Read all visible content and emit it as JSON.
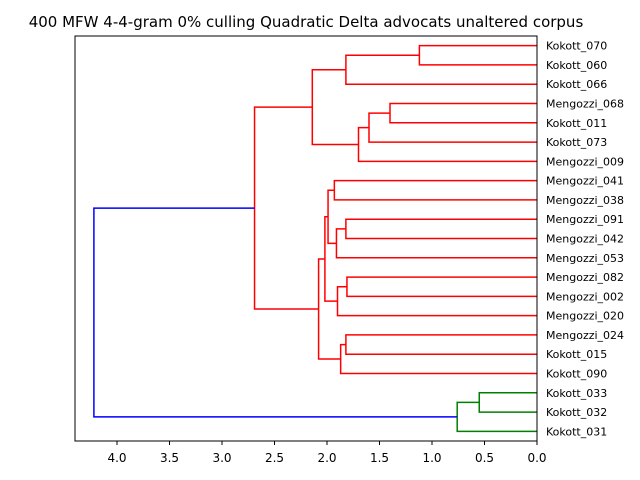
{
  "chart_data": {
    "type": "dendrogram",
    "title": "400 MFW 4-4-gram 0% culling Quadratic Delta advocats unaltered corpus",
    "orientation": "left",
    "xlim": [
      4.4,
      0.0
    ],
    "xticks": [
      4.0,
      3.5,
      3.0,
      2.5,
      2.0,
      1.5,
      1.0,
      0.5,
      0.0
    ],
    "xtick_labels": [
      "4.0",
      "3.5",
      "3.0",
      "2.5",
      "2.0",
      "1.5",
      "1.0",
      "0.5",
      "0.0"
    ],
    "leaves": [
      "Kokott_070",
      "Kokott_060",
      "Kokott_066",
      "Mengozzi_068",
      "Kokott_011",
      "Kokott_073",
      "Mengozzi_009",
      "Mengozzi_041",
      "Mengozzi_038",
      "Mengozzi_091",
      "Mengozzi_042",
      "Mengozzi_053",
      "Mengozzi_082",
      "Mengozzi_002",
      "Mengozzi_020",
      "Mengozzi_024",
      "Kokott_015",
      "Kokott_090",
      "Kokott_033",
      "Kokott_032",
      "Kokott_031"
    ],
    "colors": {
      "cluster_a": "#ff0000",
      "cluster_b": "#008000",
      "root": "#0000ff"
    },
    "merges": [
      {
        "id": "n1",
        "children": [
          "Kokott_070",
          "Kokott_060"
        ],
        "height": 1.12,
        "color": "cluster_a"
      },
      {
        "id": "n2",
        "children": [
          "n1",
          "Kokott_066"
        ],
        "height": 1.82,
        "color": "cluster_a"
      },
      {
        "id": "n3",
        "children": [
          "Mengozzi_068",
          "Kokott_011"
        ],
        "height": 1.4,
        "color": "cluster_a"
      },
      {
        "id": "n4",
        "children": [
          "n3",
          "Kokott_073"
        ],
        "height": 1.6,
        "color": "cluster_a"
      },
      {
        "id": "n5",
        "children": [
          "n4",
          "Mengozzi_009"
        ],
        "height": 1.7,
        "color": "cluster_a"
      },
      {
        "id": "n6",
        "children": [
          "n2",
          "n5"
        ],
        "height": 2.14,
        "color": "cluster_a"
      },
      {
        "id": "n7",
        "children": [
          "Mengozzi_041",
          "Mengozzi_038"
        ],
        "height": 1.93,
        "color": "cluster_a"
      },
      {
        "id": "n8",
        "children": [
          "Mengozzi_091",
          "Mengozzi_042"
        ],
        "height": 1.82,
        "color": "cluster_a"
      },
      {
        "id": "n9",
        "children": [
          "n8",
          "Mengozzi_053"
        ],
        "height": 1.91,
        "color": "cluster_a"
      },
      {
        "id": "n10",
        "children": [
          "n7",
          "n9"
        ],
        "height": 1.99,
        "color": "cluster_a"
      },
      {
        "id": "n11",
        "children": [
          "Mengozzi_082",
          "Mengozzi_002"
        ],
        "height": 1.81,
        "color": "cluster_a"
      },
      {
        "id": "n12",
        "children": [
          "n11",
          "Mengozzi_020"
        ],
        "height": 1.9,
        "color": "cluster_a"
      },
      {
        "id": "n13",
        "children": [
          "n10",
          "n12"
        ],
        "height": 2.02,
        "color": "cluster_a"
      },
      {
        "id": "n14",
        "children": [
          "Mengozzi_024",
          "Kokott_015"
        ],
        "height": 1.82,
        "color": "cluster_a"
      },
      {
        "id": "n15",
        "children": [
          "n14",
          "Kokott_090"
        ],
        "height": 1.87,
        "color": "cluster_a"
      },
      {
        "id": "n16",
        "children": [
          "n13",
          "n15"
        ],
        "height": 2.08,
        "color": "cluster_a"
      },
      {
        "id": "n17",
        "children": [
          "n6",
          "n16"
        ],
        "height": 2.69,
        "color": "cluster_a"
      },
      {
        "id": "n18",
        "children": [
          "Kokott_033",
          "Kokott_032"
        ],
        "height": 0.55,
        "color": "cluster_b"
      },
      {
        "id": "n19",
        "children": [
          "n18",
          "Kokott_031"
        ],
        "height": 0.76,
        "color": "cluster_b"
      },
      {
        "id": "n20",
        "children": [
          "n17",
          "n19"
        ],
        "height": 4.22,
        "color": "root"
      }
    ]
  }
}
